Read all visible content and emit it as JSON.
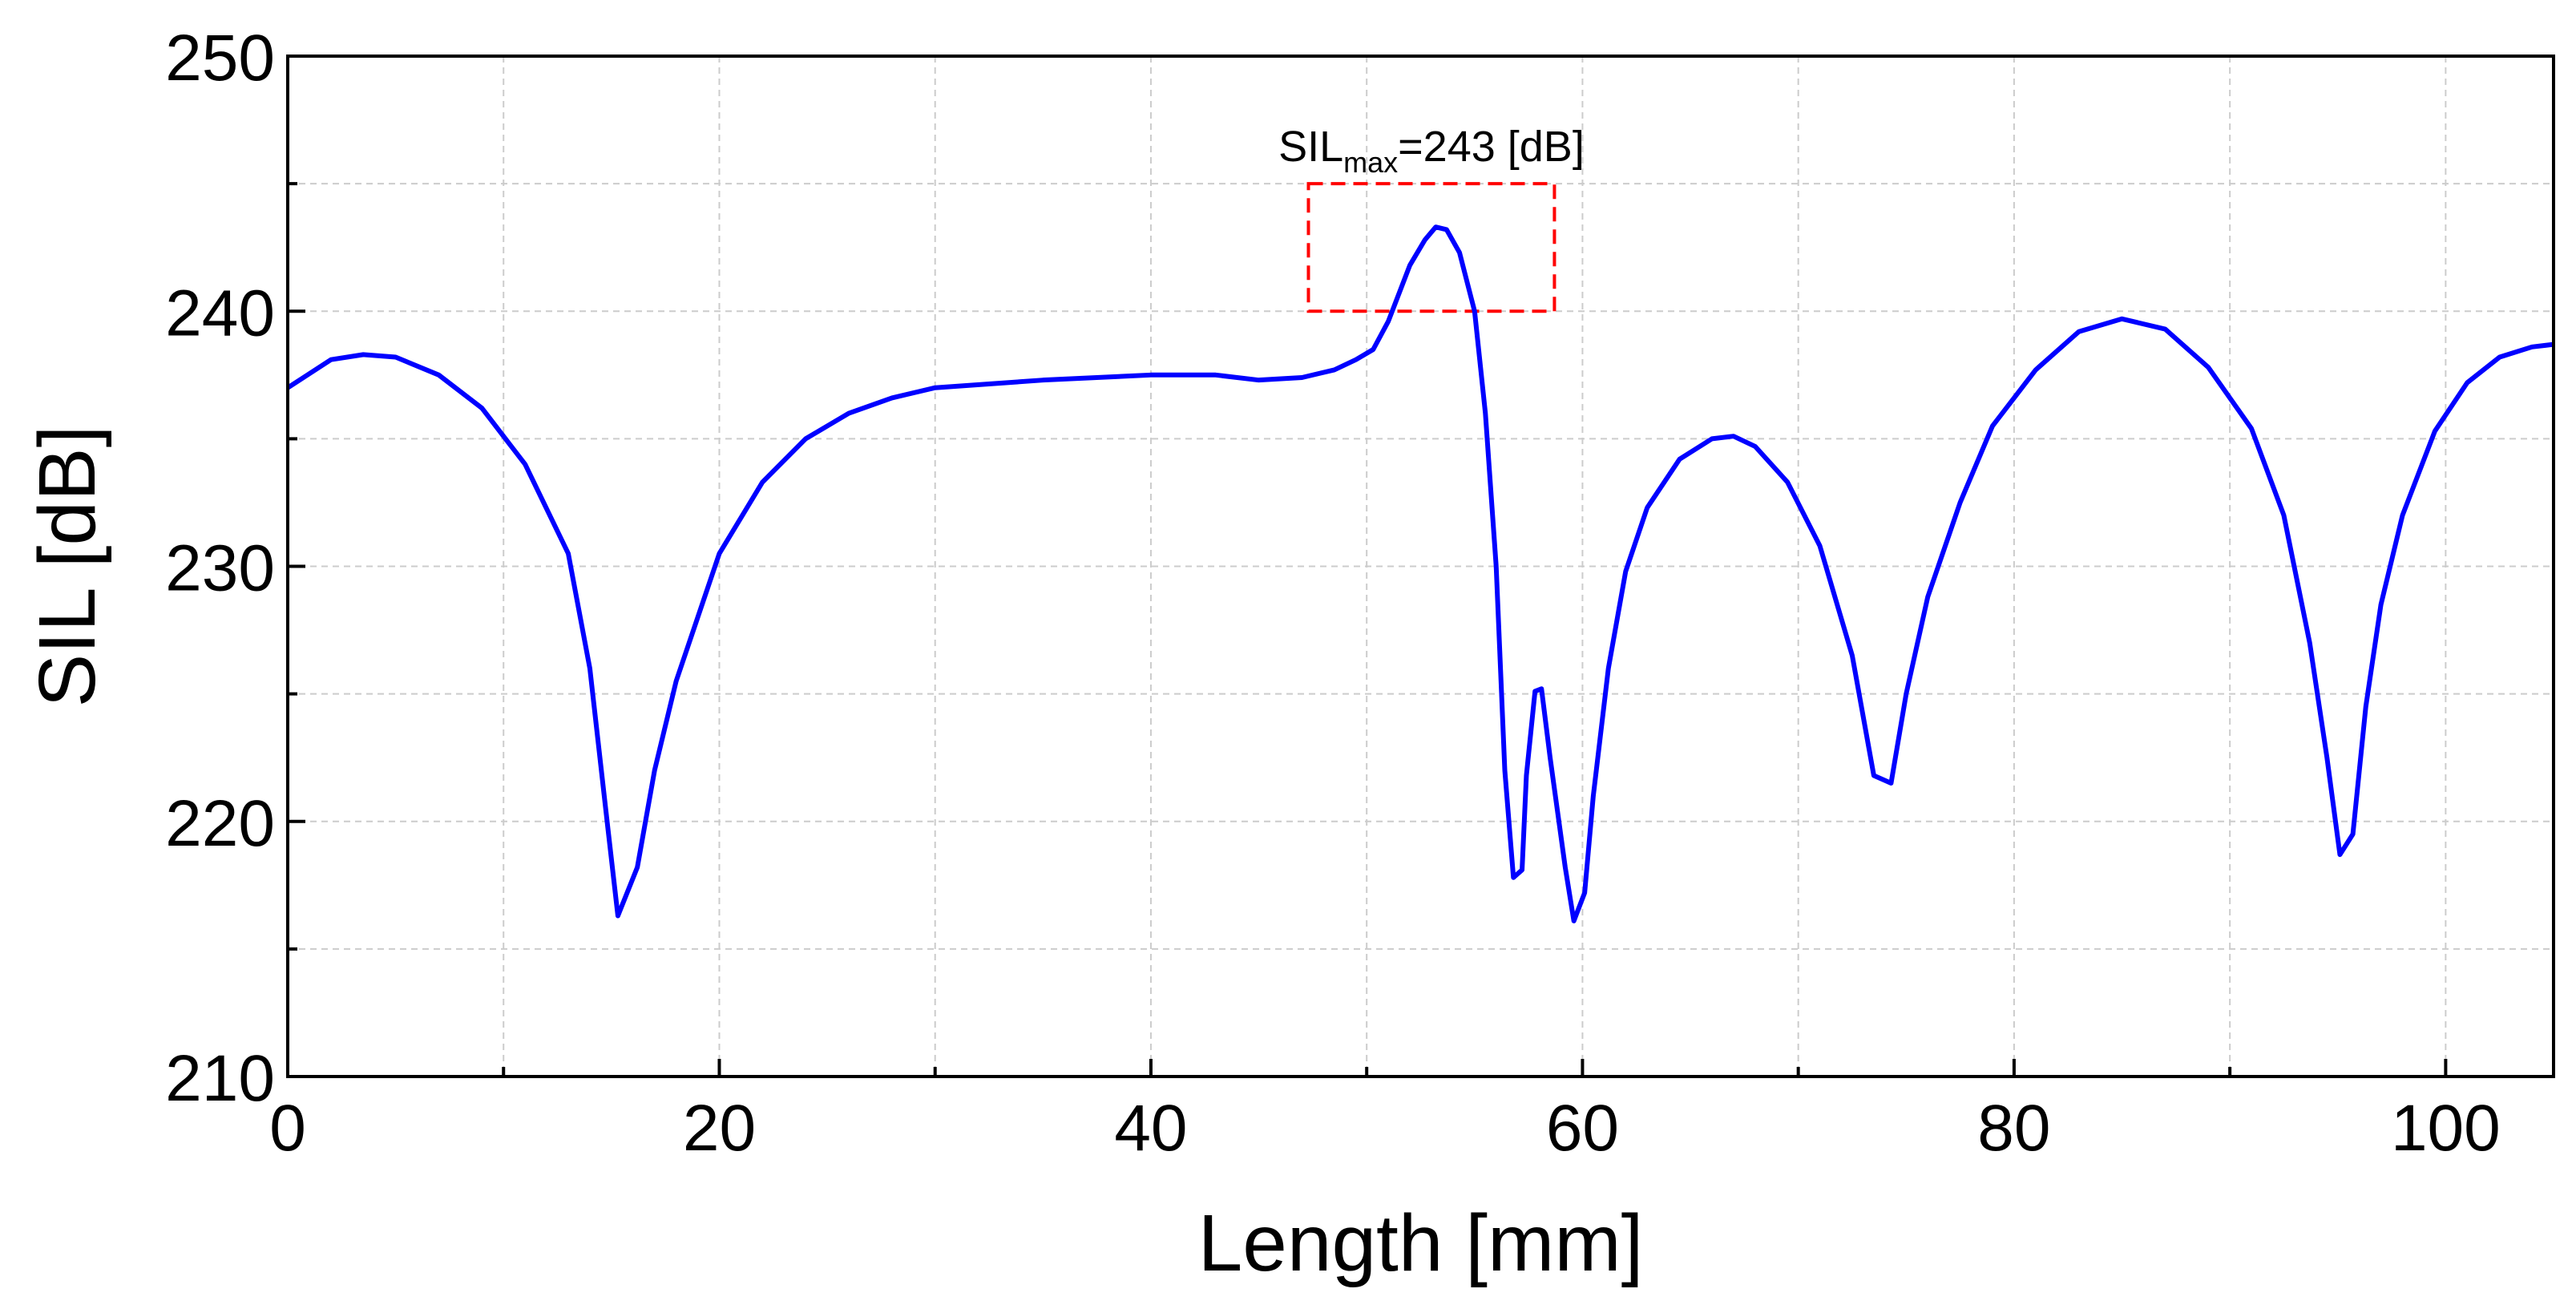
{
  "chart_data": {
    "type": "line",
    "xlabel": "Length [mm]",
    "ylabel": "SIL [dB]",
    "x": [
      0,
      2,
      3.5,
      5,
      7,
      9,
      11,
      13,
      14,
      14.8,
      15.3,
      16.2,
      17,
      18,
      20,
      22,
      24,
      26,
      28,
      30,
      35,
      40,
      43,
      45,
      47,
      48.5,
      49.5,
      50.3,
      51,
      52,
      52.7,
      53.2,
      53.7,
      54.3,
      55,
      55.5,
      56,
      56.4,
      56.8,
      57.2,
      57.4,
      57.8,
      58.1,
      58.5,
      59.2,
      59.6,
      60.1,
      60.5,
      61.2,
      62,
      63,
      64.5,
      66,
      67,
      68,
      69.5,
      71,
      72.5,
      73.5,
      74.3,
      75,
      76,
      77.5,
      79,
      81,
      83,
      85,
      87,
      89,
      91,
      92.5,
      93.7,
      94.5,
      95.1,
      95.7,
      96.3,
      97,
      98,
      99.5,
      101,
      102.5,
      104,
      105
    ],
    "series": [
      {
        "color": "#0000ff",
        "values": [
          237,
          238.1,
          238.3,
          238.2,
          237.5,
          236.2,
          234,
          230.5,
          226,
          220,
          216.3,
          218.2,
          222,
          225.5,
          230.5,
          233.3,
          235,
          236,
          236.6,
          237,
          237.3,
          237.5,
          237.5,
          237.3,
          237.4,
          237.7,
          238.1,
          238.5,
          239.6,
          241.8,
          242.8,
          243.3,
          243.2,
          242.3,
          240,
          236,
          230,
          222,
          217.8,
          218.1,
          221.8,
          225.1,
          225.2,
          222.5,
          218.2,
          216.1,
          217.2,
          221,
          226,
          229.8,
          232.3,
          234.2,
          235,
          235.1,
          234.7,
          233.3,
          230.8,
          226.5,
          221.8,
          221.5,
          225,
          228.8,
          232.5,
          235.5,
          237.7,
          239.2,
          239.7,
          239.3,
          237.8,
          235.4,
          232,
          227,
          222.5,
          218.7,
          219.5,
          224.5,
          228.5,
          232,
          235.3,
          237.2,
          238.2,
          238.6,
          238.7
        ]
      }
    ],
    "xlim": [
      0,
      105
    ],
    "ylim": [
      210,
      250
    ],
    "xticks": [
      0,
      20,
      40,
      60,
      80,
      100
    ],
    "yticks": [
      210,
      220,
      230,
      240,
      250
    ],
    "xminorticks": [
      10,
      30,
      50,
      70,
      90
    ],
    "yminorticks": [
      215,
      225,
      235,
      245
    ],
    "grid": true,
    "annotation": {
      "text": "SIL",
      "subscript": "max",
      "rest": "=243 [dB]"
    },
    "highlight": {
      "xlim": [
        47.3,
        58.7
      ],
      "ylim": [
        240,
        245
      ],
      "color": "#ff0000"
    }
  }
}
